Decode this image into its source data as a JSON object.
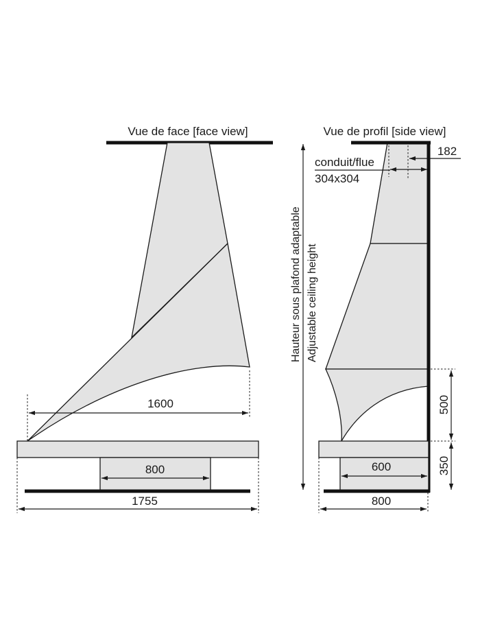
{
  "front_view": {
    "title": "Vue de face [face view]",
    "dim_hood_width": "1600",
    "dim_opening": "800",
    "dim_total_width": "1755"
  },
  "side_view": {
    "title": "Vue de profil [side view]",
    "dim_offset": "182",
    "flue_label": "conduit/flue",
    "flue_size": "304x304",
    "height_label_fr": "Hauteur sous plafond adaptable",
    "height_label_en": "Adjustable ceiling height",
    "dim_hood_height": "500",
    "dim_base_height": "350",
    "dim_opening_depth": "600",
    "dim_total_depth": "800"
  }
}
